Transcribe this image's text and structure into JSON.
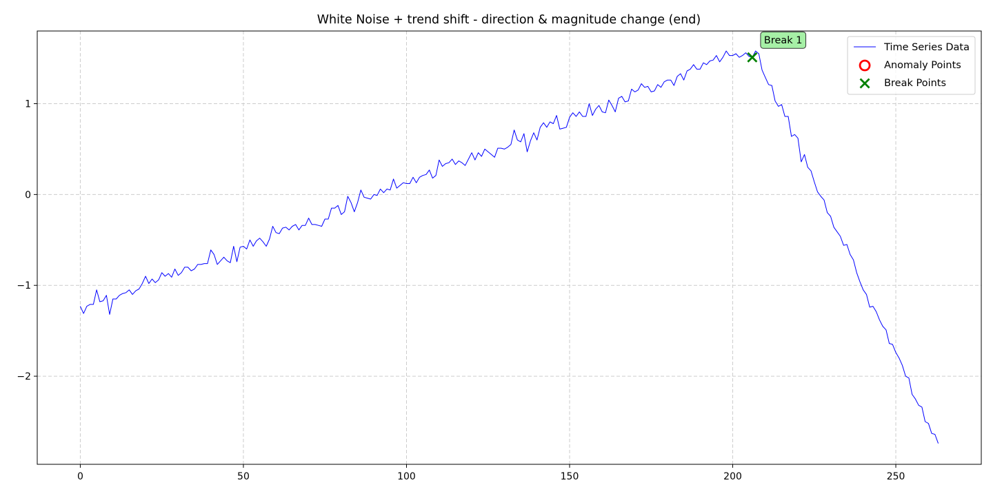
{
  "chart_data": {
    "type": "line",
    "title": "White Noise + trend shift - direction & magnitude change (end)",
    "xlabel": "",
    "ylabel": "",
    "xlim": [
      -13.2,
      276.2
    ],
    "ylim": [
      -2.97,
      1.8
    ],
    "xticks": [
      0,
      50,
      100,
      150,
      200,
      250
    ],
    "yticks": [
      -2,
      -1,
      0,
      1
    ],
    "ytick_labels": [
      "−2",
      "−1",
      "0",
      "1"
    ],
    "grid": true,
    "legend_position": "upper right",
    "series": [
      {
        "name": "Time Series Data",
        "color": "#0000ff",
        "x": [
          0,
          1,
          2,
          3,
          4,
          5,
          6,
          7,
          8,
          9,
          10,
          11,
          12,
          13,
          14,
          15,
          16,
          17,
          18,
          19,
          20,
          21,
          22,
          23,
          24,
          25,
          26,
          27,
          28,
          29,
          30,
          31,
          32,
          33,
          34,
          35,
          36,
          37,
          38,
          39,
          40,
          41,
          42,
          43,
          44,
          45,
          46,
          47,
          48,
          49,
          50,
          51,
          52,
          53,
          54,
          55,
          56,
          57,
          58,
          59,
          60,
          61,
          62,
          63,
          64,
          65,
          66,
          67,
          68,
          69,
          70,
          71,
          72,
          73,
          74,
          75,
          76,
          77,
          78,
          79,
          80,
          81,
          82,
          83,
          84,
          85,
          86,
          87,
          88,
          89,
          90,
          91,
          92,
          93,
          94,
          95,
          96,
          97,
          98,
          99,
          100,
          101,
          102,
          103,
          104,
          105,
          106,
          107,
          108,
          109,
          110,
          111,
          112,
          113,
          114,
          115,
          116,
          117,
          118,
          119,
          120,
          121,
          122,
          123,
          124,
          125,
          126,
          127,
          128,
          129,
          130,
          131,
          132,
          133,
          134,
          135,
          136,
          137,
          138,
          139,
          140,
          141,
          142,
          143,
          144,
          145,
          146,
          147,
          148,
          149,
          150,
          151,
          152,
          153,
          154,
          155,
          156,
          157,
          158,
          159,
          160,
          161,
          162,
          163,
          164,
          165,
          166,
          167,
          168,
          169,
          170,
          171,
          172,
          173,
          174,
          175,
          176,
          177,
          178,
          179,
          180,
          181,
          182,
          183,
          184,
          185,
          186,
          187,
          188,
          189,
          190,
          191,
          192,
          193,
          194,
          195,
          196,
          197,
          198,
          199,
          200,
          201,
          202,
          203,
          204,
          205,
          206,
          207,
          208,
          209,
          210,
          211,
          212,
          213,
          214,
          215,
          216,
          217,
          218,
          219,
          220,
          221,
          222,
          223,
          224,
          225,
          226,
          227,
          228,
          229,
          230,
          231,
          232,
          233,
          234,
          235,
          236,
          237,
          238,
          239,
          240,
          241,
          242,
          243,
          244,
          245,
          246,
          247,
          248,
          249,
          250,
          251,
          252,
          253,
          254,
          255,
          256,
          257,
          258,
          259,
          260,
          261,
          262,
          263
        ],
        "y": [
          -1.23,
          -1.31,
          -1.23,
          -1.21,
          -1.21,
          -1.05,
          -1.18,
          -1.17,
          -1.11,
          -1.32,
          -1.15,
          -1.15,
          -1.11,
          -1.09,
          -1.08,
          -1.05,
          -1.1,
          -1.06,
          -1.04,
          -0.98,
          -0.9,
          -0.98,
          -0.93,
          -0.97,
          -0.94,
          -0.86,
          -0.9,
          -0.87,
          -0.91,
          -0.82,
          -0.89,
          -0.86,
          -0.8,
          -0.8,
          -0.84,
          -0.82,
          -0.77,
          -0.77,
          -0.76,
          -0.76,
          -0.61,
          -0.66,
          -0.77,
          -0.73,
          -0.69,
          -0.73,
          -0.75,
          -0.57,
          -0.74,
          -0.58,
          -0.57,
          -0.6,
          -0.5,
          -0.57,
          -0.51,
          -0.48,
          -0.52,
          -0.57,
          -0.49,
          -0.35,
          -0.42,
          -0.43,
          -0.37,
          -0.36,
          -0.39,
          -0.35,
          -0.33,
          -0.39,
          -0.34,
          -0.34,
          -0.26,
          -0.33,
          -0.33,
          -0.34,
          -0.35,
          -0.27,
          -0.27,
          -0.15,
          -0.15,
          -0.12,
          -0.22,
          -0.19,
          -0.02,
          -0.09,
          -0.19,
          -0.09,
          0.05,
          -0.03,
          -0.04,
          -0.05,
          0.0,
          -0.01,
          0.06,
          0.02,
          0.06,
          0.05,
          0.17,
          0.07,
          0.1,
          0.13,
          0.12,
          0.12,
          0.19,
          0.13,
          0.19,
          0.21,
          0.22,
          0.27,
          0.18,
          0.21,
          0.38,
          0.31,
          0.34,
          0.35,
          0.39,
          0.33,
          0.37,
          0.35,
          0.32,
          0.39,
          0.46,
          0.38,
          0.46,
          0.42,
          0.5,
          0.47,
          0.44,
          0.41,
          0.51,
          0.51,
          0.5,
          0.52,
          0.55,
          0.71,
          0.6,
          0.58,
          0.67,
          0.47,
          0.59,
          0.68,
          0.6,
          0.74,
          0.79,
          0.74,
          0.8,
          0.78,
          0.87,
          0.72,
          0.73,
          0.74,
          0.85,
          0.9,
          0.86,
          0.91,
          0.86,
          0.86,
          1.0,
          0.87,
          0.94,
          0.98,
          0.91,
          0.9,
          1.04,
          0.98,
          0.91,
          1.06,
          1.08,
          1.02,
          1.03,
          1.16,
          1.13,
          1.15,
          1.22,
          1.18,
          1.19,
          1.13,
          1.14,
          1.21,
          1.18,
          1.24,
          1.26,
          1.26,
          1.2,
          1.3,
          1.33,
          1.26,
          1.36,
          1.38,
          1.43,
          1.38,
          1.38,
          1.45,
          1.43,
          1.47,
          1.48,
          1.53,
          1.46,
          1.51,
          1.58,
          1.53,
          1.53,
          1.55,
          1.51,
          1.53,
          1.56,
          1.52,
          1.51,
          1.58,
          1.55,
          1.37,
          1.29,
          1.21,
          1.2,
          1.03,
          0.97,
          0.99,
          0.86,
          0.86,
          0.64,
          0.66,
          0.62,
          0.36,
          0.44,
          0.3,
          0.26,
          0.14,
          0.03,
          -0.02,
          -0.06,
          -0.2,
          -0.24,
          -0.36,
          -0.41,
          -0.46,
          -0.56,
          -0.55,
          -0.66,
          -0.72,
          -0.86,
          -0.96,
          -1.05,
          -1.1,
          -1.24,
          -1.23,
          -1.29,
          -1.38,
          -1.45,
          -1.49,
          -1.64,
          -1.65,
          -1.74,
          -1.8,
          -1.88,
          -2.0,
          -2.02,
          -2.2,
          -2.25,
          -2.32,
          -2.34,
          -2.5,
          -2.52,
          -2.63,
          -2.64,
          -2.74
        ]
      }
    ],
    "anomaly_points": {
      "name": "Anomaly Points",
      "color": "#ff0000",
      "points": []
    },
    "break_points": {
      "name": "Break Points",
      "color": "#008000",
      "points": [
        {
          "x": 206,
          "y": 1.51
        }
      ]
    },
    "annotations": [
      {
        "text": "Break 1",
        "x": 206,
        "y": 1.51,
        "background": "#a6f0a6"
      }
    ],
    "colors": {
      "grid": "#cccccc",
      "axis": "#000000",
      "legend_border": "#cccccc"
    }
  }
}
